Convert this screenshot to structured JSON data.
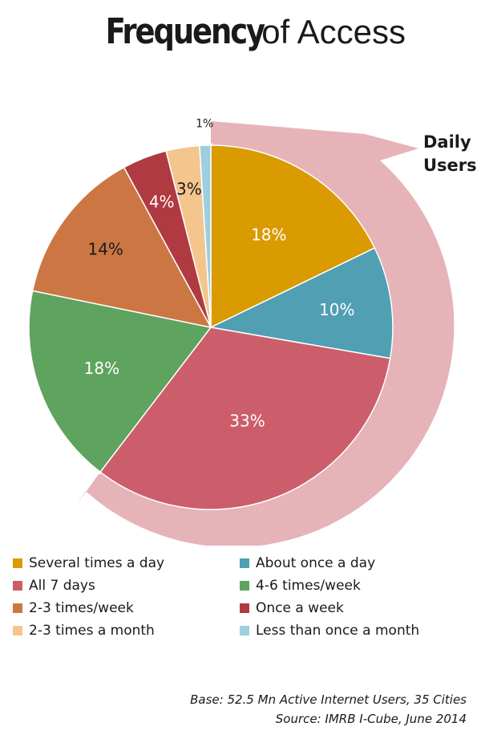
{
  "title": {
    "bold": "Frequency",
    "rest": "of Access"
  },
  "callout": {
    "line1": "Daily",
    "line2": "Users"
  },
  "chart_data": {
    "type": "pie",
    "title": "Frequency of Access",
    "slices": [
      {
        "label": "Several times a day",
        "value": 18,
        "display": "18%",
        "color": "#d99b00",
        "text_color": "#ffffff"
      },
      {
        "label": "About once a day",
        "value": 10,
        "display": "10%",
        "color": "#509fb3",
        "text_color": "#ffffff"
      },
      {
        "label": "All 7 days",
        "value": 33,
        "display": "33%",
        "color": "#cc5e6c",
        "text_color": "#ffffff"
      },
      {
        "label": "4-6 times/week",
        "value": 18,
        "display": "18%",
        "color": "#5ea35e",
        "text_color": "#ffffff"
      },
      {
        "label": "2-3 times/week",
        "value": 14,
        "display": "14%",
        "color": "#cc7743",
        "text_color": "#1a1a1a"
      },
      {
        "label": "Once a week",
        "value": 4,
        "display": "4%",
        "color": "#b03a42",
        "text_color": "#ffffff"
      },
      {
        "label": "2-3 times a month",
        "value": 3,
        "display": "3%",
        "color": "#f5c58e",
        "text_color": "#1a1a1a"
      },
      {
        "label": "Less than once a month",
        "value": 1,
        "display": "1%",
        "color": "#9ccfe0",
        "text_color": "#1a1a1a"
      }
    ],
    "highlight_color": "#e6b3b8",
    "legend_position": "bottom"
  },
  "footer": {
    "base": "Base: 52.5 Mn Active Internet Users, 35 Cities",
    "source": "Source: IMRB I-Cube, June  2014"
  }
}
